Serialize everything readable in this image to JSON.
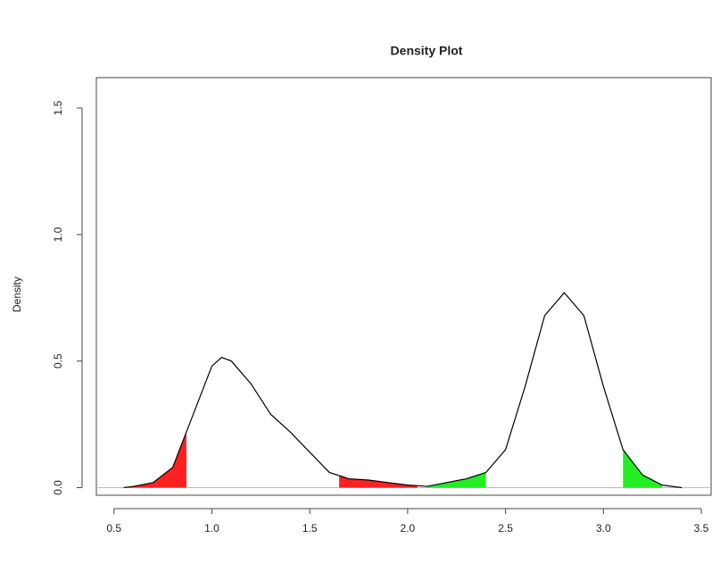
{
  "chart_data": {
    "type": "density",
    "title": "Density Plot",
    "y_label": "Density",
    "x": [
      0.55,
      0.6,
      0.7,
      0.8,
      0.87,
      0.9,
      0.95,
      1.0,
      1.05,
      1.1,
      1.2,
      1.3,
      1.4,
      1.5,
      1.6,
      1.7,
      1.8,
      1.9,
      2.0,
      2.1,
      2.2,
      2.3,
      2.4,
      2.5,
      2.6,
      2.7,
      2.8,
      2.9,
      3.0,
      3.1,
      3.2,
      3.3,
      3.4
    ],
    "series": [
      {
        "color": "#000000",
        "values": [
          0.0,
          0.005,
          0.02,
          0.08,
          0.22,
          0.28,
          0.38,
          0.48,
          0.515,
          0.5,
          0.41,
          0.29,
          0.22,
          0.14,
          0.06,
          0.035,
          0.03,
          0.02,
          0.01,
          0.005,
          0.02,
          0.035,
          0.06,
          0.15,
          0.4,
          0.68,
          0.77,
          0.68,
          0.4,
          0.15,
          0.05,
          0.01,
          0.0
        ]
      }
    ],
    "shaded_regions": [
      {
        "from": 0.55,
        "to": 0.87,
        "color": "#ff2020"
      },
      {
        "from": 1.65,
        "to": 2.05,
        "color": "#ff2020"
      },
      {
        "from": 2.1,
        "to": 2.4,
        "color": "#22ee22"
      },
      {
        "from": 3.1,
        "to": 3.3,
        "color": "#22ee22"
      }
    ],
    "xlim": [
      0.41,
      3.55
    ],
    "ylim": [
      -0.03,
      1.62
    ],
    "xticks": [
      0.5,
      {
        "value": 1,
        "label": "1.0"
      },
      1.5,
      {
        "value": 2,
        "label": "2.0"
      },
      2.5,
      {
        "value": 3,
        "label": "3.0"
      },
      3.5
    ],
    "yticks": [
      {
        "value": 0,
        "label": "0.0"
      },
      0.5,
      {
        "value": 1,
        "label": "1.0"
      },
      1.5
    ]
  }
}
